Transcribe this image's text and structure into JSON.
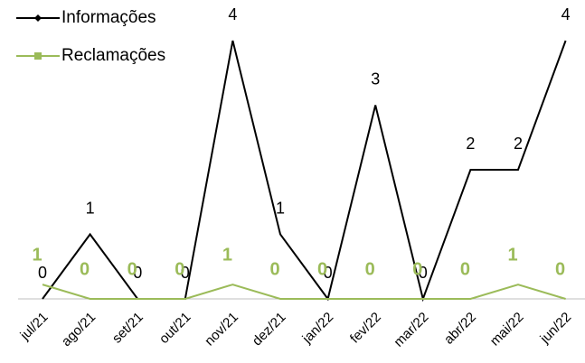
{
  "chart_data": {
    "type": "line",
    "categories": [
      "jul/21",
      "ago/21",
      "set/21",
      "out/21",
      "nov/21",
      "dez/21",
      "jan/22",
      "fev/22",
      "mar/22",
      "abr/22",
      "mai/22",
      "jun/22"
    ],
    "series": [
      {
        "name": "Informações",
        "color": "#000000",
        "values": [
          0,
          1,
          0,
          0,
          4,
          1,
          0,
          3,
          0,
          2,
          2,
          4
        ]
      },
      {
        "name": "Reclamações",
        "color": "#9bbb59",
        "axis": "y2",
        "values": [
          1,
          0,
          0,
          0,
          1,
          0,
          0,
          0,
          0,
          0,
          1,
          0
        ]
      }
    ],
    "ylim": [
      0,
      4
    ],
    "y2lim": [
      0,
      18
    ],
    "legend": "top-left"
  }
}
